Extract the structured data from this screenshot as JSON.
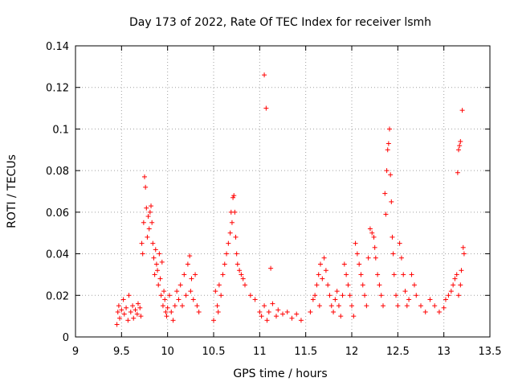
{
  "chart_data": {
    "type": "scatter",
    "title": "Day 173 of 2022, Rate Of TEC Index for receiver lsmh",
    "xlabel": "GPS time / hours",
    "ylabel": "ROTI / TECUs",
    "xlim": [
      9,
      13.5
    ],
    "ylim": [
      0,
      0.14
    ],
    "x_ticks": [
      {
        "value": 9,
        "label": "9"
      },
      {
        "value": 9.5,
        "label": "9.5"
      },
      {
        "value": 10,
        "label": "10"
      },
      {
        "value": 10.5,
        "label": "10.5"
      },
      {
        "value": 11,
        "label": "11"
      },
      {
        "value": 11.5,
        "label": "11.5"
      },
      {
        "value": 12,
        "label": "12"
      },
      {
        "value": 12.5,
        "label": "12.5"
      },
      {
        "value": 13,
        "label": "13"
      },
      {
        "value": 13.5,
        "label": "13.5"
      }
    ],
    "y_ticks": [
      {
        "value": 0,
        "label": "0"
      },
      {
        "value": 0.02,
        "label": "0.02"
      },
      {
        "value": 0.04,
        "label": "0.04"
      },
      {
        "value": 0.06,
        "label": "0.06"
      },
      {
        "value": 0.08,
        "label": "0.08"
      },
      {
        "value": 0.1,
        "label": "0.1"
      },
      {
        "value": 0.12,
        "label": "0.12"
      },
      {
        "value": 0.14,
        "label": "0.14"
      }
    ],
    "grid": true,
    "marker": "plus",
    "color": "#ff0000",
    "series": [
      {
        "points": [
          [
            9.45,
            0.006
          ],
          [
            9.46,
            0.012
          ],
          [
            9.47,
            0.015
          ],
          [
            9.48,
            0.009
          ],
          [
            9.5,
            0.013
          ],
          [
            9.52,
            0.018
          ],
          [
            9.53,
            0.011
          ],
          [
            9.55,
            0.014
          ],
          [
            9.57,
            0.008
          ],
          [
            9.58,
            0.02
          ],
          [
            9.6,
            0.012
          ],
          [
            9.62,
            0.015
          ],
          [
            9.63,
            0.009
          ],
          [
            9.65,
            0.013
          ],
          [
            9.67,
            0.011
          ],
          [
            9.68,
            0.016
          ],
          [
            9.7,
            0.014
          ],
          [
            9.71,
            0.01
          ],
          [
            9.72,
            0.045
          ],
          [
            9.73,
            0.04
          ],
          [
            9.74,
            0.055
          ],
          [
            9.75,
            0.077
          ],
          [
            9.76,
            0.072
          ],
          [
            9.77,
            0.062
          ],
          [
            9.78,
            0.048
          ],
          [
            9.79,
            0.058
          ],
          [
            9.8,
            0.052
          ],
          [
            9.81,
            0.06
          ],
          [
            9.82,
            0.063
          ],
          [
            9.83,
            0.055
          ],
          [
            9.84,
            0.045
          ],
          [
            9.85,
            0.038
          ],
          [
            9.86,
            0.03
          ],
          [
            9.87,
            0.042
          ],
          [
            9.88,
            0.035
          ],
          [
            9.89,
            0.032
          ],
          [
            9.9,
            0.025
          ],
          [
            9.91,
            0.04
          ],
          [
            9.92,
            0.028
          ],
          [
            9.93,
            0.02
          ],
          [
            9.94,
            0.036
          ],
          [
            9.95,
            0.015
          ],
          [
            9.96,
            0.022
          ],
          [
            9.97,
            0.018
          ],
          [
            9.98,
            0.012
          ],
          [
            9.99,
            0.01
          ],
          [
            10.0,
            0.014
          ],
          [
            10.02,
            0.02
          ],
          [
            10.04,
            0.012
          ],
          [
            10.06,
            0.008
          ],
          [
            10.08,
            0.015
          ],
          [
            10.1,
            0.022
          ],
          [
            10.12,
            0.018
          ],
          [
            10.14,
            0.025
          ],
          [
            10.16,
            0.015
          ],
          [
            10.18,
            0.03
          ],
          [
            10.2,
            0.02
          ],
          [
            10.22,
            0.035
          ],
          [
            10.24,
            0.039
          ],
          [
            10.25,
            0.022
          ],
          [
            10.26,
            0.028
          ],
          [
            10.28,
            0.018
          ],
          [
            10.3,
            0.03
          ],
          [
            10.32,
            0.015
          ],
          [
            10.34,
            0.012
          ],
          [
            10.5,
            0.008
          ],
          [
            10.52,
            0.022
          ],
          [
            10.54,
            0.015
          ],
          [
            10.55,
            0.012
          ],
          [
            10.56,
            0.025
          ],
          [
            10.58,
            0.02
          ],
          [
            10.6,
            0.03
          ],
          [
            10.62,
            0.035
          ],
          [
            10.64,
            0.04
          ],
          [
            10.66,
            0.045
          ],
          [
            10.68,
            0.05
          ],
          [
            10.69,
            0.06
          ],
          [
            10.7,
            0.055
          ],
          [
            10.71,
            0.067
          ],
          [
            10.72,
            0.068
          ],
          [
            10.73,
            0.06
          ],
          [
            10.74,
            0.048
          ],
          [
            10.75,
            0.04
          ],
          [
            10.76,
            0.035
          ],
          [
            10.78,
            0.032
          ],
          [
            10.8,
            0.03
          ],
          [
            10.82,
            0.028
          ],
          [
            10.84,
            0.025
          ],
          [
            10.9,
            0.02
          ],
          [
            10.95,
            0.018
          ],
          [
            11.05,
            0.126
          ],
          [
            11.07,
            0.11
          ],
          [
            11.0,
            0.012
          ],
          [
            11.02,
            0.01
          ],
          [
            11.05,
            0.015
          ],
          [
            11.08,
            0.008
          ],
          [
            11.1,
            0.012
          ],
          [
            11.12,
            0.033
          ],
          [
            11.14,
            0.016
          ],
          [
            11.18,
            0.01
          ],
          [
            11.2,
            0.013
          ],
          [
            11.25,
            0.011
          ],
          [
            11.3,
            0.012
          ],
          [
            11.35,
            0.009
          ],
          [
            11.4,
            0.011
          ],
          [
            11.45,
            0.008
          ],
          [
            11.55,
            0.012
          ],
          [
            11.58,
            0.018
          ],
          [
            11.6,
            0.02
          ],
          [
            11.62,
            0.025
          ],
          [
            11.64,
            0.03
          ],
          [
            11.65,
            0.015
          ],
          [
            11.66,
            0.035
          ],
          [
            11.68,
            0.028
          ],
          [
            11.7,
            0.038
          ],
          [
            11.72,
            0.032
          ],
          [
            11.74,
            0.025
          ],
          [
            11.76,
            0.02
          ],
          [
            11.78,
            0.015
          ],
          [
            11.8,
            0.012
          ],
          [
            11.82,
            0.018
          ],
          [
            11.84,
            0.022
          ],
          [
            11.86,
            0.015
          ],
          [
            11.88,
            0.01
          ],
          [
            11.9,
            0.02
          ],
          [
            11.92,
            0.035
          ],
          [
            11.94,
            0.03
          ],
          [
            11.96,
            0.025
          ],
          [
            11.98,
            0.02
          ],
          [
            12.0,
            0.015
          ],
          [
            12.02,
            0.01
          ],
          [
            12.04,
            0.045
          ],
          [
            12.06,
            0.04
          ],
          [
            12.08,
            0.035
          ],
          [
            12.1,
            0.03
          ],
          [
            12.12,
            0.025
          ],
          [
            12.14,
            0.02
          ],
          [
            12.16,
            0.015
          ],
          [
            12.18,
            0.038
          ],
          [
            12.2,
            0.052
          ],
          [
            12.22,
            0.05
          ],
          [
            12.24,
            0.048
          ],
          [
            12.25,
            0.043
          ],
          [
            12.26,
            0.038
          ],
          [
            12.28,
            0.03
          ],
          [
            12.3,
            0.025
          ],
          [
            12.32,
            0.02
          ],
          [
            12.34,
            0.015
          ],
          [
            12.36,
            0.069
          ],
          [
            12.37,
            0.059
          ],
          [
            12.38,
            0.08
          ],
          [
            12.39,
            0.09
          ],
          [
            12.4,
            0.093
          ],
          [
            12.41,
            0.1
          ],
          [
            12.42,
            0.078
          ],
          [
            12.43,
            0.065
          ],
          [
            12.44,
            0.048
          ],
          [
            12.45,
            0.04
          ],
          [
            12.46,
            0.03
          ],
          [
            12.48,
            0.02
          ],
          [
            12.5,
            0.015
          ],
          [
            12.52,
            0.045
          ],
          [
            12.54,
            0.038
          ],
          [
            12.56,
            0.03
          ],
          [
            12.58,
            0.022
          ],
          [
            12.6,
            0.015
          ],
          [
            12.62,
            0.018
          ],
          [
            12.65,
            0.03
          ],
          [
            12.68,
            0.025
          ],
          [
            12.7,
            0.02
          ],
          [
            12.75,
            0.015
          ],
          [
            12.8,
            0.012
          ],
          [
            12.85,
            0.018
          ],
          [
            12.9,
            0.015
          ],
          [
            12.95,
            0.012
          ],
          [
            13.0,
            0.014
          ],
          [
            13.02,
            0.018
          ],
          [
            13.05,
            0.02
          ],
          [
            13.08,
            0.022
          ],
          [
            13.1,
            0.025
          ],
          [
            13.12,
            0.028
          ],
          [
            13.14,
            0.03
          ],
          [
            13.15,
            0.079
          ],
          [
            13.16,
            0.09
          ],
          [
            13.17,
            0.092
          ],
          [
            13.18,
            0.094
          ],
          [
            13.2,
            0.109
          ],
          [
            13.21,
            0.043
          ],
          [
            13.22,
            0.04
          ],
          [
            13.19,
            0.032
          ],
          [
            13.18,
            0.025
          ],
          [
            13.16,
            0.02
          ]
        ]
      }
    ]
  }
}
